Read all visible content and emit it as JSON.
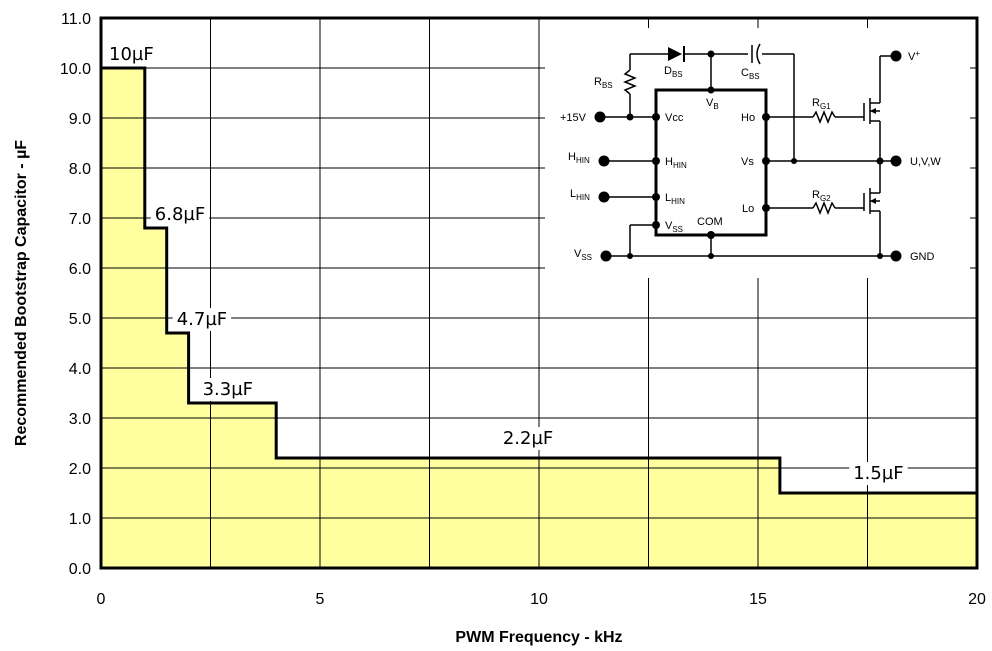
{
  "chart_data": {
    "type": "line",
    "step": true,
    "xlabel": "PWM Frequency - kHz",
    "ylabel": "Recommended Bootstrap Capacitor - µF",
    "xlim": [
      0,
      20
    ],
    "ylim": [
      0,
      11
    ],
    "x_ticks": [
      0,
      5,
      10,
      15,
      20
    ],
    "y_ticks": [
      0,
      1,
      2,
      3,
      4,
      5,
      6,
      7,
      8,
      9,
      10,
      11
    ],
    "y_tick_labels": [
      "0.0",
      "1.0",
      "2.0",
      "3.0",
      "4.0",
      "5.0",
      "6.0",
      "7.0",
      "8.0",
      "9.0",
      "10.0",
      "11.0"
    ],
    "grid": true,
    "fill_color": "#ffffa0",
    "line_color": "#000000",
    "segments": [
      {
        "x_start": 0,
        "x_end": 1,
        "value": 10,
        "label": "10µF"
      },
      {
        "x_start": 1,
        "x_end": 1.5,
        "value": 6.8,
        "label": "6.8µF"
      },
      {
        "x_start": 1.5,
        "x_end": 2,
        "value": 4.7,
        "label": "4.7µF"
      },
      {
        "x_start": 2,
        "x_end": 4,
        "value": 3.3,
        "label": "3.3µF"
      },
      {
        "x_start": 4,
        "x_end": 15.5,
        "value": 2.2,
        "label": "2.2µF"
      },
      {
        "x_start": 15.5,
        "x_end": 20,
        "value": 1.5,
        "label": "1.5µF"
      }
    ]
  },
  "schematic": {
    "labels": {
      "rbs": "R",
      "rbs_sub": "BS",
      "dbs": "D",
      "dbs_sub": "BS",
      "cbs": "C",
      "cbs_sub": "BS",
      "vb": "V",
      "vb_sub": "B",
      "v15": "+15V",
      "vcc": "Vcc",
      "ho": "Ho",
      "vs": "Vs",
      "lo": "Lo",
      "hhin_left": "H",
      "hhin_left_sub": "HIN",
      "hhin_right": "H",
      "hhin_right_sub": "HIN",
      "lhin_left": "L",
      "lhin_left_sub": "HIN",
      "lhin_right": "L",
      "lhin_right_sub": "HIN",
      "vss_in": "V",
      "vss_in_sub": "SS",
      "com": "COM",
      "vss_left": "V",
      "vss_left_sub": "SS",
      "rg1": "R",
      "rg1_sub": "G1",
      "rg2": "R",
      "rg2_sub": "G2",
      "vplus": "V",
      "vplus_sup": "+",
      "uvw": "U,V,W",
      "gnd": "GND"
    }
  }
}
